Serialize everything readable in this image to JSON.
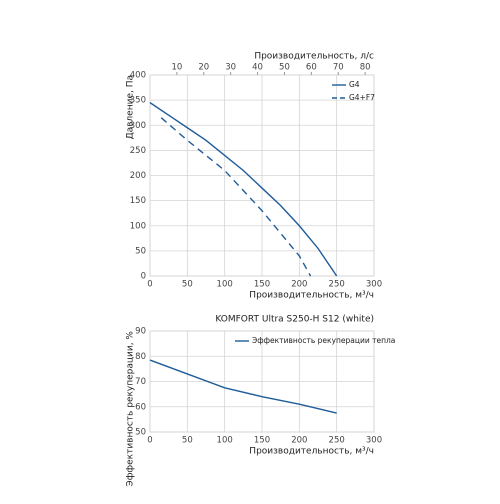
{
  "chart_data": [
    {
      "type": "line",
      "xlabel": "Производительность, м³/ч",
      "ylabel": "Давление, Па",
      "x2label": "Производительность, л/с",
      "xlim": [
        0,
        300
      ],
      "xticks": [
        0,
        50,
        100,
        150,
        200,
        250,
        300
      ],
      "ylim": [
        0,
        400
      ],
      "yticks": [
        0,
        50,
        100,
        150,
        200,
        250,
        300,
        350,
        400
      ],
      "x2lim": [
        0,
        83.3
      ],
      "x2ticks": [
        10,
        20,
        30,
        40,
        50,
        60,
        70,
        80
      ],
      "grid": true,
      "legend": "upper right",
      "series": [
        {
          "name": "G4",
          "color": "#1f5c99",
          "dash": false,
          "x": [
            0,
            25,
            50,
            75,
            100,
            125,
            150,
            175,
            200,
            225,
            250
          ],
          "values": [
            345,
            320,
            295,
            270,
            240,
            210,
            175,
            140,
            100,
            55,
            0
          ]
        },
        {
          "name": "G4+F7",
          "color": "#1f5c99",
          "dash": true,
          "x": [
            15,
            50,
            100,
            150,
            200,
            215
          ],
          "values": [
            315,
            270,
            210,
            130,
            40,
            0
          ]
        }
      ]
    },
    {
      "type": "line",
      "title": "KOMFORT Ultra S250-H S12 (white)",
      "xlabel": "Производительность, м³/ч",
      "ylabel": "Эффективность рекуперации, %",
      "xlim": [
        0,
        300
      ],
      "xticks": [
        0,
        50,
        100,
        150,
        200,
        250,
        300
      ],
      "ylim": [
        50,
        90
      ],
      "yticks": [
        50,
        60,
        70,
        80,
        90
      ],
      "grid": true,
      "legend": "upper center",
      "series": [
        {
          "name": "Эффективность рекуперации тепла",
          "color": "#1f5c99",
          "dash": false,
          "x": [
            0,
            50,
            100,
            150,
            200,
            250
          ],
          "values": [
            78.5,
            73,
            67.5,
            64,
            61,
            57.5
          ]
        }
      ]
    }
  ]
}
